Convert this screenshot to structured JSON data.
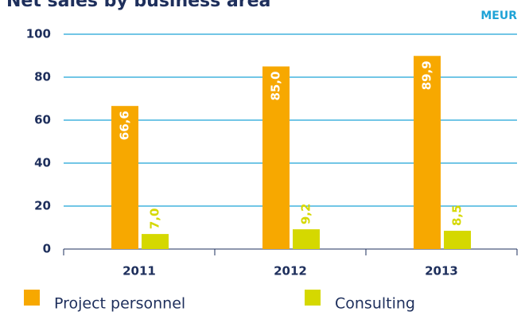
{
  "chart_data": {
    "type": "bar",
    "title": "Net sales by business area",
    "unit_label": "MEUR",
    "categories": [
      "2011",
      "2012",
      "2013"
    ],
    "series": [
      {
        "name": "Project personnel",
        "color": "#f7a800",
        "values": [
          66.6,
          85.0,
          89.9
        ],
        "value_labels": [
          "66,6",
          "85,0",
          "89,9"
        ]
      },
      {
        "name": "Consulting",
        "color": "#d5d800",
        "values": [
          7.0,
          9.2,
          8.5
        ],
        "value_labels": [
          "7,0",
          "9,2",
          "8,5"
        ]
      }
    ],
    "ylim": [
      0,
      100
    ],
    "yticks": [
      0,
      20,
      40,
      60,
      80,
      100
    ],
    "grid": true
  }
}
